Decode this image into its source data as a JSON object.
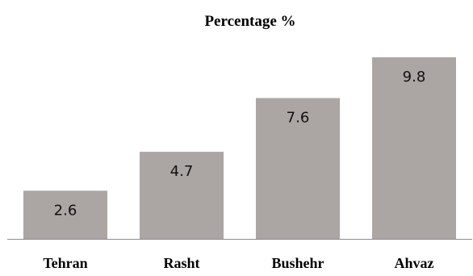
{
  "chart_data": {
    "type": "bar",
    "title": "Percentage %",
    "categories": [
      "Tehran",
      "Rasht",
      "Bushehr",
      "Ahvaz"
    ],
    "values": [
      2.6,
      4.7,
      7.6,
      9.8
    ],
    "data_labels": [
      "2.6",
      "4.7",
      "7.6",
      "9.8"
    ],
    "xlabel": "",
    "ylabel": "",
    "ylim": [
      0,
      10.8
    ],
    "grid": false,
    "legend": "none",
    "y_axis_visible": false
  },
  "colors": {
    "bar": "#aba6a4",
    "axis": "#8c8c8c",
    "text": "#000000"
  }
}
